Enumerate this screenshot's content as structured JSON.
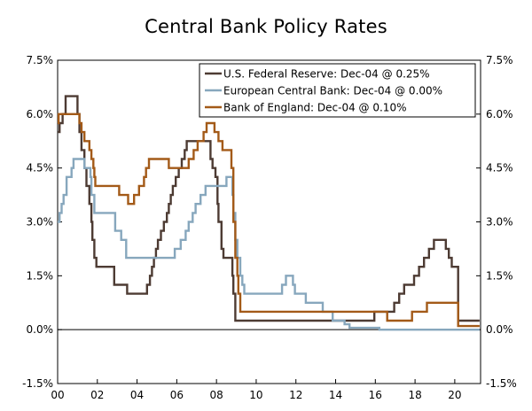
{
  "chart_data": {
    "type": "line",
    "title": "Central Bank Policy Rates",
    "xlabel": "",
    "ylabel": "",
    "ylim": [
      -1.5,
      7.5
    ],
    "xlim": [
      2000,
      2021.3
    ],
    "y_ticks": [
      -1.5,
      0,
      1.5,
      3,
      4.5,
      6,
      7.5
    ],
    "y_tick_labels": [
      "-1.5%",
      "0.0%",
      "1.5%",
      "3.0%",
      "4.5%",
      "6.0%",
      "7.5%"
    ],
    "x_ticks": [
      2000,
      2002,
      2004,
      2006,
      2008,
      2010,
      2012,
      2014,
      2016,
      2018,
      2020
    ],
    "x_tick_labels": [
      "00",
      "02",
      "04",
      "06",
      "08",
      "10",
      "12",
      "14",
      "16",
      "18",
      "20"
    ],
    "grid": false,
    "legend_position": "top-right",
    "series": [
      {
        "name": "U.S. Federal Reserve: Dec-04 @ 0.25%",
        "color": "#4d3b33",
        "steps": [
          [
            2000.0,
            5.5
          ],
          [
            2000.1,
            5.75
          ],
          [
            2000.25,
            6.0
          ],
          [
            2000.4,
            6.5
          ],
          [
            2001.0,
            6.0
          ],
          [
            2001.1,
            5.5
          ],
          [
            2001.2,
            5.0
          ],
          [
            2001.35,
            4.5
          ],
          [
            2001.45,
            4.0
          ],
          [
            2001.6,
            3.5
          ],
          [
            2001.7,
            3.0
          ],
          [
            2001.75,
            2.5
          ],
          [
            2001.85,
            2.0
          ],
          [
            2001.95,
            1.75
          ],
          [
            2002.85,
            1.25
          ],
          [
            2003.5,
            1.0
          ],
          [
            2004.5,
            1.25
          ],
          [
            2004.65,
            1.5
          ],
          [
            2004.75,
            1.75
          ],
          [
            2004.85,
            2.0
          ],
          [
            2004.95,
            2.25
          ],
          [
            2005.05,
            2.5
          ],
          [
            2005.2,
            2.75
          ],
          [
            2005.35,
            3.0
          ],
          [
            2005.5,
            3.25
          ],
          [
            2005.6,
            3.5
          ],
          [
            2005.7,
            3.75
          ],
          [
            2005.8,
            4.0
          ],
          [
            2005.95,
            4.25
          ],
          [
            2006.1,
            4.5
          ],
          [
            2006.25,
            4.75
          ],
          [
            2006.4,
            5.0
          ],
          [
            2006.5,
            5.25
          ],
          [
            2007.7,
            4.75
          ],
          [
            2007.8,
            4.5
          ],
          [
            2007.95,
            4.25
          ],
          [
            2008.05,
            3.5
          ],
          [
            2008.1,
            3.0
          ],
          [
            2008.25,
            2.25
          ],
          [
            2008.35,
            2.0
          ],
          [
            2008.8,
            1.5
          ],
          [
            2008.85,
            1.0
          ],
          [
            2008.95,
            0.25
          ],
          [
            2015.95,
            0.5
          ],
          [
            2016.95,
            0.75
          ],
          [
            2017.2,
            1.0
          ],
          [
            2017.45,
            1.25
          ],
          [
            2017.95,
            1.5
          ],
          [
            2018.2,
            1.75
          ],
          [
            2018.45,
            2.0
          ],
          [
            2018.7,
            2.25
          ],
          [
            2018.95,
            2.5
          ],
          [
            2019.55,
            2.25
          ],
          [
            2019.7,
            2.0
          ],
          [
            2019.85,
            1.75
          ],
          [
            2020.17,
            0.25
          ],
          [
            2021.25,
            0.25
          ]
        ]
      },
      {
        "name": "European Central Bank: Dec-04 @ 0.00%",
        "color": "#87a7bd",
        "steps": [
          [
            2000.0,
            3.0
          ],
          [
            2000.1,
            3.25
          ],
          [
            2000.2,
            3.5
          ],
          [
            2000.3,
            3.75
          ],
          [
            2000.45,
            4.25
          ],
          [
            2000.7,
            4.5
          ],
          [
            2000.8,
            4.75
          ],
          [
            2001.35,
            4.5
          ],
          [
            2001.65,
            4.25
          ],
          [
            2001.7,
            3.75
          ],
          [
            2001.85,
            3.25
          ],
          [
            2002.9,
            2.75
          ],
          [
            2003.2,
            2.5
          ],
          [
            2003.45,
            2.0
          ],
          [
            2005.9,
            2.25
          ],
          [
            2006.2,
            2.5
          ],
          [
            2006.45,
            2.75
          ],
          [
            2006.6,
            3.0
          ],
          [
            2006.8,
            3.25
          ],
          [
            2006.95,
            3.5
          ],
          [
            2007.2,
            3.75
          ],
          [
            2007.45,
            4.0
          ],
          [
            2008.5,
            4.25
          ],
          [
            2008.8,
            3.75
          ],
          [
            2008.85,
            3.25
          ],
          [
            2008.95,
            2.5
          ],
          [
            2009.05,
            2.0
          ],
          [
            2009.2,
            1.5
          ],
          [
            2009.3,
            1.25
          ],
          [
            2009.4,
            1.0
          ],
          [
            2011.3,
            1.25
          ],
          [
            2011.5,
            1.5
          ],
          [
            2011.85,
            1.25
          ],
          [
            2011.95,
            1.0
          ],
          [
            2012.5,
            0.75
          ],
          [
            2013.35,
            0.5
          ],
          [
            2013.85,
            0.25
          ],
          [
            2014.45,
            0.15
          ],
          [
            2014.7,
            0.05
          ],
          [
            2016.2,
            0.0
          ],
          [
            2021.25,
            0.0
          ]
        ]
      },
      {
        "name": "Bank of England: Dec-04 @ 0.10%",
        "color": "#a35a18",
        "steps": [
          [
            2000.0,
            5.75
          ],
          [
            2000.05,
            6.0
          ],
          [
            2001.1,
            5.75
          ],
          [
            2001.2,
            5.5
          ],
          [
            2001.35,
            5.25
          ],
          [
            2001.6,
            5.0
          ],
          [
            2001.7,
            4.75
          ],
          [
            2001.8,
            4.5
          ],
          [
            2001.85,
            4.25
          ],
          [
            2001.9,
            4.0
          ],
          [
            2003.1,
            3.75
          ],
          [
            2003.55,
            3.5
          ],
          [
            2003.85,
            3.75
          ],
          [
            2004.1,
            4.0
          ],
          [
            2004.35,
            4.25
          ],
          [
            2004.45,
            4.5
          ],
          [
            2004.6,
            4.75
          ],
          [
            2005.6,
            4.5
          ],
          [
            2006.6,
            4.75
          ],
          [
            2006.85,
            5.0
          ],
          [
            2007.05,
            5.25
          ],
          [
            2007.35,
            5.5
          ],
          [
            2007.5,
            5.75
          ],
          [
            2007.9,
            5.5
          ],
          [
            2008.1,
            5.25
          ],
          [
            2008.3,
            5.0
          ],
          [
            2008.75,
            4.5
          ],
          [
            2008.85,
            3.0
          ],
          [
            2008.95,
            2.0
          ],
          [
            2009.05,
            1.5
          ],
          [
            2009.1,
            1.0
          ],
          [
            2009.2,
            0.5
          ],
          [
            2016.6,
            0.25
          ],
          [
            2017.85,
            0.5
          ],
          [
            2018.6,
            0.75
          ],
          [
            2020.17,
            0.1
          ],
          [
            2021.25,
            0.1
          ]
        ]
      }
    ]
  }
}
